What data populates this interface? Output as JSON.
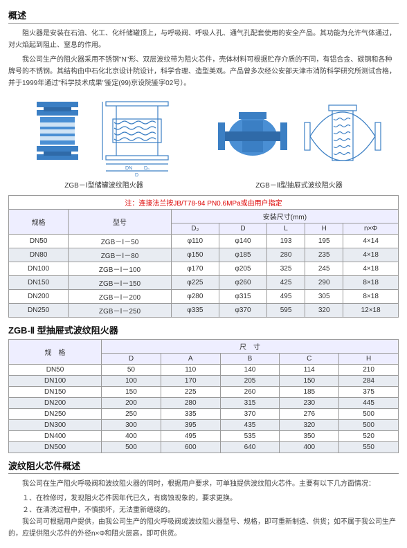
{
  "overview": {
    "title": "概述",
    "p1": "阻火器是安装在石油、化工、化纤储罐顶上，与呼吸阀、呼吸人孔、通气孔配套使用的安全产品。其功能为允许气体通过，对火焰起到阻止、窒息的作用。",
    "p2": "我公司生产的阻火器采用不锈钢\"N\"形、双层波纹带为阻火芯件，壳体材料可根据贮存介质的不同，有铝合金、碳钢和各种牌号的不锈钢。其结构由中石化北京设计院设计，科学合理、造型美观。产品曾多次经公安部天津市消防科学研究所测试合格，并于1999年通过\"科学技术成果\"鉴定(99)京设院鉴字02号）。"
  },
  "diagrams": {
    "left_caption": "ZGB－Ⅰ型储罐波纹阻火器",
    "right_caption": "ZGB－Ⅱ型抽屉式波纹阻火器",
    "color_fill": "#3b7fc4",
    "color_line": "#3b7fc4"
  },
  "table1": {
    "note": "注：连接法兰按JB/T78-94 PN0.6MPa或由用户指定",
    "header_group": "安装尺寸(mm)",
    "cols_left": [
      "规格",
      "型号"
    ],
    "cols_dims": [
      "D₂",
      "D",
      "L",
      "H",
      "n×Φ"
    ],
    "rows": [
      [
        "DN50",
        "ZGB－Ⅰ－50",
        "φ110",
        "φ140",
        "193",
        "195",
        "4×14"
      ],
      [
        "DN80",
        "ZGB－Ⅰ－80",
        "φ150",
        "φ185",
        "280",
        "235",
        "4×18"
      ],
      [
        "DN100",
        "ZGB－Ⅰ－100",
        "φ170",
        "φ205",
        "325",
        "245",
        "4×18"
      ],
      [
        "DN150",
        "ZGB－Ⅰ－150",
        "φ225",
        "φ260",
        "425",
        "290",
        "8×18"
      ],
      [
        "DN200",
        "ZGB－Ⅰ－200",
        "φ280",
        "φ315",
        "495",
        "305",
        "8×18"
      ],
      [
        "DN250",
        "ZGB－Ⅰ－250",
        "φ335",
        "φ370",
        "595",
        "320",
        "12×18"
      ]
    ]
  },
  "sec2_title": "ZGB-Ⅱ 型抽屉式波纹阻火器",
  "table2": {
    "header_group": "尺　寸",
    "cols": [
      "规　格",
      "D",
      "A",
      "B",
      "C",
      "H"
    ],
    "rows": [
      [
        "DN50",
        "50",
        "110",
        "140",
        "114",
        "210"
      ],
      [
        "DN100",
        "100",
        "170",
        "205",
        "150",
        "284"
      ],
      [
        "DN150",
        "150",
        "225",
        "260",
        "185",
        "375"
      ],
      [
        "DN200",
        "200",
        "280",
        "315",
        "230",
        "445"
      ],
      [
        "DN250",
        "250",
        "335",
        "370",
        "276",
        "500"
      ],
      [
        "DN300",
        "300",
        "395",
        "435",
        "320",
        "500"
      ],
      [
        "DN400",
        "400",
        "495",
        "535",
        "350",
        "520"
      ],
      [
        "DN500",
        "500",
        "600",
        "640",
        "400",
        "550"
      ]
    ]
  },
  "core": {
    "title": "波纹阻火芯件概述",
    "p1": "我公司在生产阻火呼吸阀和波纹阻火器的同时，根据用户要求，可单独提供波纹阻火芯件。主要有以下几方面情况：",
    "li1": "１、在检修时，发现阻火芯件因年代已久，有腐蚀现象的，要求更换。",
    "li2": "２、在清洗过程中，不慎损坏，无法重新缠绕的。",
    "p2": "我公司可根据用户提供，由我公司生产的阻火呼吸阀或波纹阻火器型号、规格，即可重新制造、供货；如不属于我公司生产的，应提供阻火芯件的外径n×Φ和阻火层高，即可供货。"
  }
}
